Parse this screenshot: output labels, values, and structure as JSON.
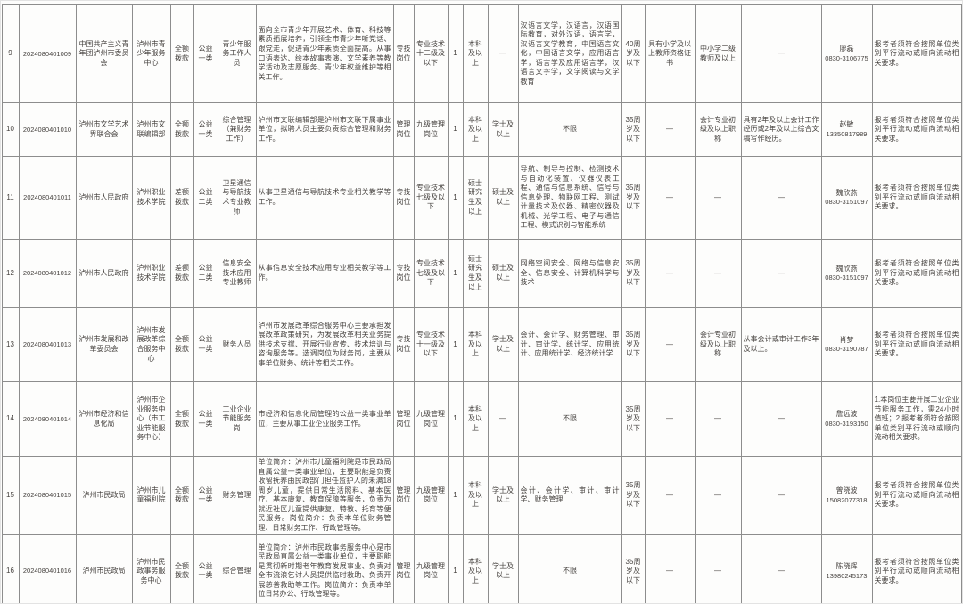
{
  "table": {
    "rows": [
      {
        "seq": "9",
        "code": "2024080401009",
        "dept": "中国共产主义青年团泸州市委员会",
        "unit": "泸州市青少年服务中心",
        "funding": "全额拨款",
        "category": "公益一类",
        "post": "青少年服务工作人员",
        "desc": "面向全市青少年开展艺术、体育、科技等素质拓展培养，引领全市青少年听党话、跟党走，促进青少年素质全面提高。从事口语表达、绘本故事表演、文学素养等教学活动及志愿服务、青少年权益维护等相关工作。",
        "post_type": "专技岗位",
        "post_level": "专业技术十二级及以下",
        "count": "1",
        "education": "本科及以上",
        "degree": "—",
        "majors": "汉语言文学，汉语言，汉语国际教育，对外汉语，语言学，汉语言文学教育，中国语言文化，中国语言文学，应用语言学，语言学及应用语言学，汉语言文字学，文学阅读与文学教育",
        "age": "40周岁及以下",
        "cert": "具有小学及以上教师资格证书",
        "title": "中小学二级教师及以上",
        "other": "—",
        "contact_name": "廖磊",
        "contact_phone": "0830-3106775",
        "remark": "报考者须符合按照单位类别平行流动或顺向流动相关要求。"
      },
      {
        "seq": "10",
        "code": "2024080401010",
        "dept": "泸州市文学艺术界联合会",
        "unit": "泸州市文联编辑部",
        "funding": "全额拨款",
        "category": "公益一类",
        "post": "综合管理（兼财务工作）",
        "desc": "泸州市文联编辑部是泸州市文联下属事业单位，拟聘人员主要负责综合管理和财务工作。",
        "post_type": "管理岗位",
        "post_level": "九级管理岗位",
        "count": "1",
        "education": "本科及以上",
        "degree": "学士及以上",
        "majors": "不限",
        "age": "35周岁及以下",
        "cert": "—",
        "title": "会计专业初级及以上职称",
        "other": "具有2年及以上会计工作经历或2年及以上综合文稿写作经历。",
        "contact_name": "赵敏",
        "contact_phone": "13350817989",
        "remark": "报考者须符合按照单位类别平行流动或顺向流动相关要求。"
      },
      {
        "seq": "11",
        "code": "2024080401011",
        "dept": "泸州市人民政府",
        "unit": "泸州职业技术学院",
        "funding": "差额拨款",
        "category": "公益二类",
        "post": "卫星通信与导航技术专业教师",
        "desc": "从事卫星通信与导航技术专业相关教学等工作。",
        "post_type": "专技岗位",
        "post_level": "专业技术七级及以下",
        "count": "1",
        "education": "硕士研究生及以上",
        "degree": "硕士及以上",
        "majors": "导航、制导与控制、检测技术与自动化装置、仪器仪表工程、通信与信息系统、信号与信息处理、物联网工程、测试计量技术及仪器、精密仪器及机械、光学工程、电子与通信工程、模式识别与智能系统",
        "age": "35周岁及以下",
        "cert": "—",
        "title": "—",
        "other": "—",
        "contact_name": "魏欣燕",
        "contact_phone": "0830-3151097",
        "remark": "报考者须符合按照单位类别平行流动或顺向流动相关要求。"
      },
      {
        "seq": "12",
        "code": "2024080401012",
        "dept": "泸州市人民政府",
        "unit": "泸州职业技术学院",
        "funding": "差额拨款",
        "category": "公益二类",
        "post": "信息安全技术应用专业教师",
        "desc": "从事信息安全技术应用专业相关教学等工作。",
        "post_type": "专技岗位",
        "post_level": "专业技术七级及以下",
        "count": "1",
        "education": "硕士研究生及以上",
        "degree": "硕士及以上",
        "majors": "网络空间安全、网络与信息安全、信息安全、计算机科学与技术",
        "age": "35周岁及以下",
        "cert": "—",
        "title": "—",
        "other": "—",
        "contact_name": "魏欣燕",
        "contact_phone": "0830-3151097",
        "remark": "报考者须符合按照单位类别平行流动或顺向流动相关要求。"
      },
      {
        "seq": "13",
        "code": "2024080401013",
        "dept": "泸州市发展和改革委员会",
        "unit": "泸州市发展改革综合服务中心",
        "funding": "全额拨款",
        "category": "公益一类",
        "post": "财务人员",
        "desc": "泸州市发展改革综合服务中心主要承担发展改革政策研究，为发展改革相关业务提供技术支撑、开展行业宣传、技术培训与咨询服务等。选调岗位为财务岗，主要从事单位财务、统计等相关工作。",
        "post_type": "专技岗位",
        "post_level": "专业技术十一级及以下",
        "count": "1",
        "education": "本科及以上",
        "degree": "学士及以上",
        "majors": "会计、会计学、财务管理、审计、审计学、统计学、应用统计、应用统计学、经济统计学",
        "age": "35周岁及以下",
        "cert": "—",
        "title": "会计专业初级及以上职称",
        "other": "从事会计或审计工作3年及以上。",
        "contact_name": "肖梦",
        "contact_phone": "0830-3190787",
        "remark": "报考者须符合按照单位类别平行流动或顺向流动相关要求。"
      },
      {
        "seq": "14",
        "code": "2024080401014",
        "dept": "泸州市经济和信息化局",
        "unit": "泸州市企业服务中心（市工业节能服务中心）",
        "funding": "全额拨款",
        "category": "公益一类",
        "post": "工业企业节能服务岗",
        "desc": "市经济和信息化局管理的公益一类事业单位，主要从事工业企业服务工作。",
        "post_type": "管理岗位",
        "post_level": "九级管理岗位",
        "count": "1",
        "education": "本科及以上",
        "degree": "—",
        "majors": "不限",
        "age": "35周岁及以下",
        "cert": "—",
        "title": "—",
        "other": "—",
        "contact_name": "詹远波",
        "contact_phone": "0830-3193150",
        "remark": "1.本岗位主要开展工业企业节能服务工作，需24小时值班；2.报考者须符合按照单位类别平行流动或顺向流动相关要求。"
      },
      {
        "seq": "15",
        "code": "2024080401015",
        "dept": "泸州市民政局",
        "unit": "泸州市儿童福利院",
        "funding": "全额拨款",
        "category": "公益一类",
        "post": "财务管理",
        "desc": "单位简介：泸州市儿童福利院是市民政局直属公益一类事业单位，主要职能是负责收留抚养由民政部门担任监护人的未满18周岁儿童，提供日常生活照料、基本医疗、基本康复、教育保障等服务，负责为就近社区儿童提供康复、特教、托育等便民服务。岗位简介：负责本单位财务管理、日常财务工作、行政管理等。",
        "post_type": "管理岗位",
        "post_level": "九级管理岗位",
        "count": "1",
        "education": "本科及以上",
        "degree": "学士及以上",
        "majors": "会计、会计学、审计、审计学、财务管理",
        "age": "35周岁及以下",
        "cert": "—",
        "title": "—",
        "other": "—",
        "contact_name": "曾晓波",
        "contact_phone": "15082077318",
        "remark": "报考者须符合按照单位类别平行流动或顺向流动相关要求。"
      },
      {
        "seq": "16",
        "code": "2024080401016",
        "dept": "泸州市民政局",
        "unit": "泸州市民政事务服务中心",
        "funding": "全额拨款",
        "category": "公益一类",
        "post": "综合管理",
        "desc": "单位简介：泸州市民政事务服务中心是市民政局直属公益一类事业单位，主要职能是贯彻新时期老年教育发展事业、负责对全市流浪乞讨人员提供临时救助、负责开展慈善救助等工作。岗位简介：负责本单位日常办公、行政管理等。",
        "post_type": "管理岗位",
        "post_level": "九级管理岗位",
        "count": "1",
        "education": "本科及以上",
        "degree": "学士及以上",
        "majors": "不限",
        "age": "35周岁及以下",
        "cert": "—",
        "title": "—",
        "other": "—",
        "contact_name": "陈晓辉",
        "contact_phone": "13980245173",
        "remark": "报考者须符合按照单位类别平行流动或顺向流动相关要求。"
      }
    ]
  }
}
